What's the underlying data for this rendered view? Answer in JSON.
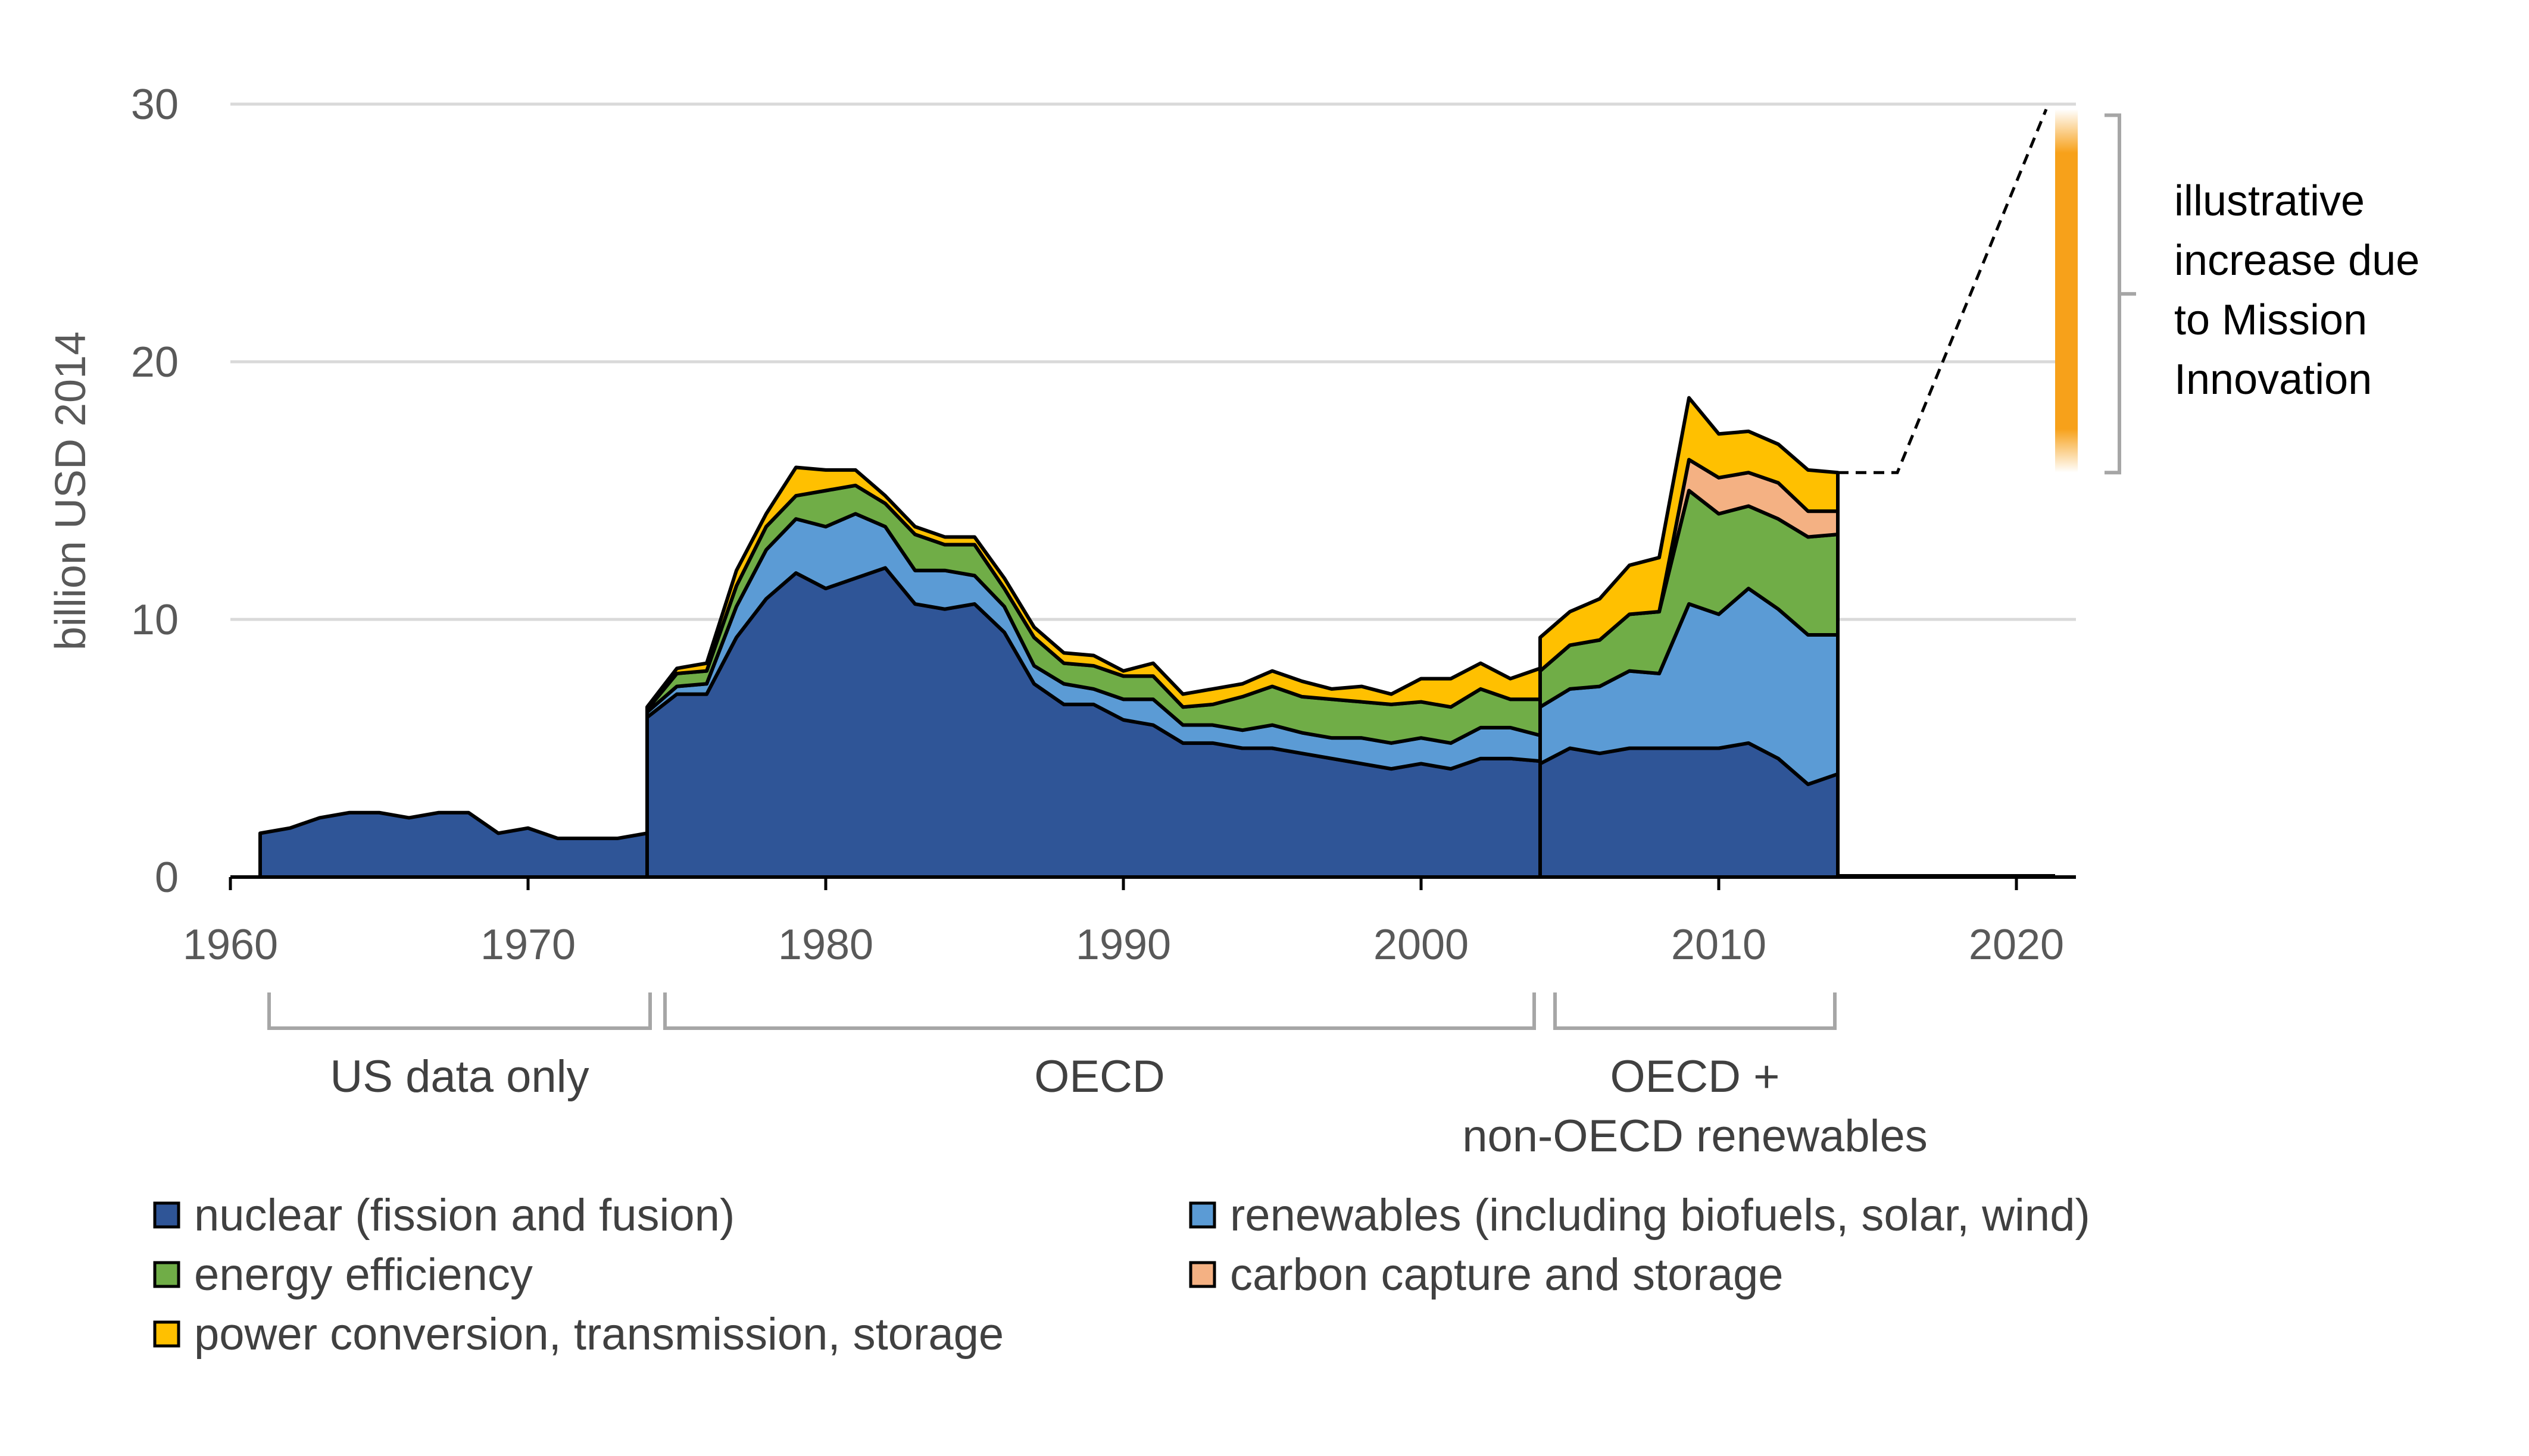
{
  "chart_data": {
    "type": "area",
    "title": "",
    "xlabel": "",
    "ylabel": "billion USD 2014",
    "xlim": [
      1960,
      2022
    ],
    "ylim": [
      0,
      30
    ],
    "x_ticks": [
      "1960",
      "1970",
      "1980",
      "1990",
      "2000",
      "2010",
      "2020"
    ],
    "y_ticks": [
      "0",
      "10",
      "20",
      "30"
    ],
    "grid": "horizontal",
    "legend_position": "bottom",
    "colors": {
      "nuclear": "#2F5597",
      "renewables": "#5B9BD5",
      "efficiency": "#70AD47",
      "ccs": "#F4B183",
      "power": "#FFC000"
    },
    "segments": [
      {
        "label": "US data only",
        "x": [
          1961,
          1962,
          1963,
          1964,
          1965,
          1966,
          1967,
          1968,
          1969,
          1970,
          1971,
          1972,
          1973,
          1974
        ],
        "series": {
          "nuclear": [
            1.7,
            1.9,
            2.3,
            2.5,
            2.5,
            2.3,
            2.5,
            2.5,
            1.7,
            1.9,
            1.5,
            1.5,
            1.5,
            1.7
          ],
          "renewables": [
            0,
            0,
            0,
            0,
            0,
            0,
            0,
            0,
            0,
            0,
            0,
            0,
            0,
            0
          ],
          "efficiency": [
            0,
            0,
            0,
            0,
            0,
            0,
            0,
            0,
            0,
            0,
            0,
            0,
            0,
            0
          ],
          "ccs": [
            0,
            0,
            0,
            0,
            0,
            0,
            0,
            0,
            0,
            0,
            0,
            0,
            0,
            0
          ],
          "power": [
            0,
            0,
            0,
            0,
            0,
            0,
            0,
            0,
            0,
            0,
            0,
            0,
            0,
            0
          ]
        }
      },
      {
        "label": "OECD",
        "x": [
          1974,
          1975,
          1976,
          1977,
          1978,
          1979,
          1980,
          1981,
          1982,
          1983,
          1984,
          1985,
          1986,
          1987,
          1988,
          1989,
          1990,
          1991,
          1992,
          1993,
          1994,
          1995,
          1996,
          1997,
          1998,
          1999,
          2000,
          2001,
          2002,
          2003,
          2004
        ],
        "series": {
          "nuclear": [
            6.2,
            7.1,
            7.1,
            9.3,
            10.8,
            11.8,
            11.2,
            11.6,
            12.0,
            10.6,
            10.4,
            10.6,
            9.5,
            7.5,
            6.7,
            6.7,
            6.1,
            5.9,
            5.2,
            5.2,
            5.0,
            5.0,
            4.8,
            4.6,
            4.4,
            4.2,
            4.4,
            4.2,
            4.6,
            4.6,
            4.5
          ],
          "renewables": [
            0.2,
            0.3,
            0.4,
            1.2,
            1.9,
            2.1,
            2.4,
            2.5,
            1.6,
            1.3,
            1.5,
            1.1,
            1.0,
            0.7,
            0.8,
            0.6,
            0.8,
            1.0,
            0.7,
            0.7,
            0.7,
            0.9,
            0.8,
            0.8,
            1.0,
            1.0,
            1.0,
            1.0,
            1.2,
            1.2,
            1.0
          ],
          "efficiency": [
            0.1,
            0.5,
            0.5,
            0.8,
            0.9,
            0.9,
            1.4,
            1.1,
            0.9,
            1.4,
            1.0,
            1.2,
            0.7,
            1.1,
            0.8,
            0.9,
            0.9,
            0.9,
            0.7,
            0.8,
            1.3,
            1.5,
            1.4,
            1.5,
            1.4,
            1.5,
            1.4,
            1.4,
            1.5,
            1.1,
            1.4
          ],
          "ccs": [
            0,
            0,
            0,
            0,
            0,
            0,
            0,
            0,
            0,
            0,
            0,
            0,
            0,
            0,
            0,
            0,
            0,
            0,
            0,
            0,
            0,
            0,
            0,
            0,
            0,
            0,
            0,
            0,
            0,
            0,
            0
          ],
          "power": [
            0.1,
            0.2,
            0.3,
            0.6,
            0.5,
            1.1,
            0.8,
            0.6,
            0.3,
            0.3,
            0.3,
            0.3,
            0.4,
            0.4,
            0.4,
            0.4,
            0.2,
            0.5,
            0.5,
            0.6,
            0.5,
            0.6,
            0.6,
            0.4,
            0.6,
            0.4,
            0.9,
            1.1,
            1.0,
            0.8,
            1.2
          ]
        }
      },
      {
        "label": "OECD + non-OECD renewables",
        "x": [
          2004,
          2005,
          2006,
          2007,
          2008,
          2009,
          2010,
          2011,
          2012,
          2013,
          2014
        ],
        "series": {
          "nuclear": [
            4.4,
            5.0,
            4.8,
            5.0,
            5.0,
            5.0,
            5.0,
            5.2,
            4.6,
            3.6,
            4.0
          ],
          "renewables": [
            2.2,
            2.3,
            2.6,
            3.0,
            2.9,
            5.6,
            5.2,
            6.0,
            5.8,
            5.8,
            5.4
          ],
          "efficiency": [
            1.4,
            1.7,
            1.8,
            2.2,
            2.4,
            4.4,
            3.9,
            3.2,
            3.5,
            3.8,
            3.9
          ],
          "ccs": [
            0,
            0,
            0,
            0,
            0,
            1.2,
            1.4,
            1.3,
            1.4,
            1.0,
            0.9
          ],
          "power": [
            1.3,
            1.3,
            1.6,
            1.9,
            2.1,
            2.4,
            1.7,
            1.6,
            1.5,
            1.6,
            1.5
          ]
        }
      }
    ],
    "projection": {
      "x": [
        2014,
        2016,
        2021
      ],
      "y": [
        15.7,
        15.7,
        29.8
      ],
      "bar_x": 2021.3,
      "bar_range": [
        15.7,
        29.8
      ],
      "bar_color": "#F7A11A"
    },
    "annotation_lines": [
      "illustrative",
      "increase due",
      "to Mission",
      "Innovation"
    ],
    "regions": [
      {
        "lines": [
          "US data only"
        ],
        "x_range": [
          1961.3,
          1974.1
        ]
      },
      {
        "lines": [
          "OECD"
        ],
        "x_range": [
          1974.6,
          2003.8
        ]
      },
      {
        "lines": [
          "OECD +",
          "non-OECD renewables"
        ],
        "x_range": [
          2004.5,
          2013.9
        ]
      }
    ],
    "legend": [
      {
        "key": "nuclear",
        "label": "nuclear (fission and fusion)"
      },
      {
        "key": "renewables",
        "label": "renewables (including biofuels, solar, wind)"
      },
      {
        "key": "efficiency",
        "label": "energy efficiency"
      },
      {
        "key": "ccs",
        "label": "carbon capture and storage"
      },
      {
        "key": "power",
        "label": "power conversion, transmission, storage"
      }
    ]
  }
}
